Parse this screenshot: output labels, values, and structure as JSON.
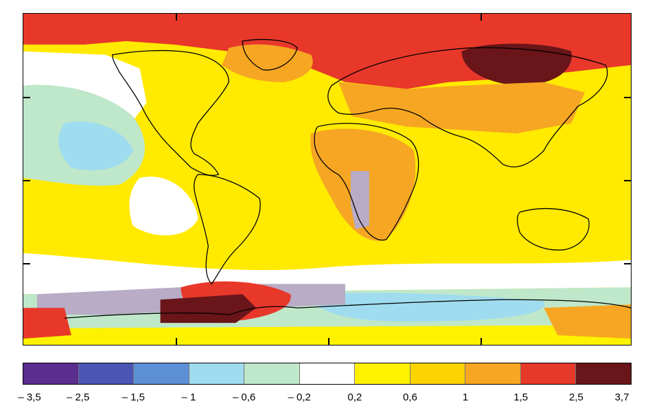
{
  "legend": {
    "colors": [
      "#5b2d8e",
      "#4b55b4",
      "#5d8fd6",
      "#9fdcef",
      "#bfe7c9",
      "#ffffff",
      "#fff200",
      "#fbd300",
      "#f6a623",
      "#e8382a",
      "#6a1519"
    ],
    "labels": [
      "– 3,5",
      "– 2,5",
      "– 1,5",
      "– 1",
      "– 0,6",
      "– 0,2",
      "0,2",
      "0,6",
      "1",
      "1,5",
      "2,5",
      "3,7"
    ]
  },
  "map": {
    "base_color": "#ffea00",
    "coastline_color": "#000000"
  }
}
